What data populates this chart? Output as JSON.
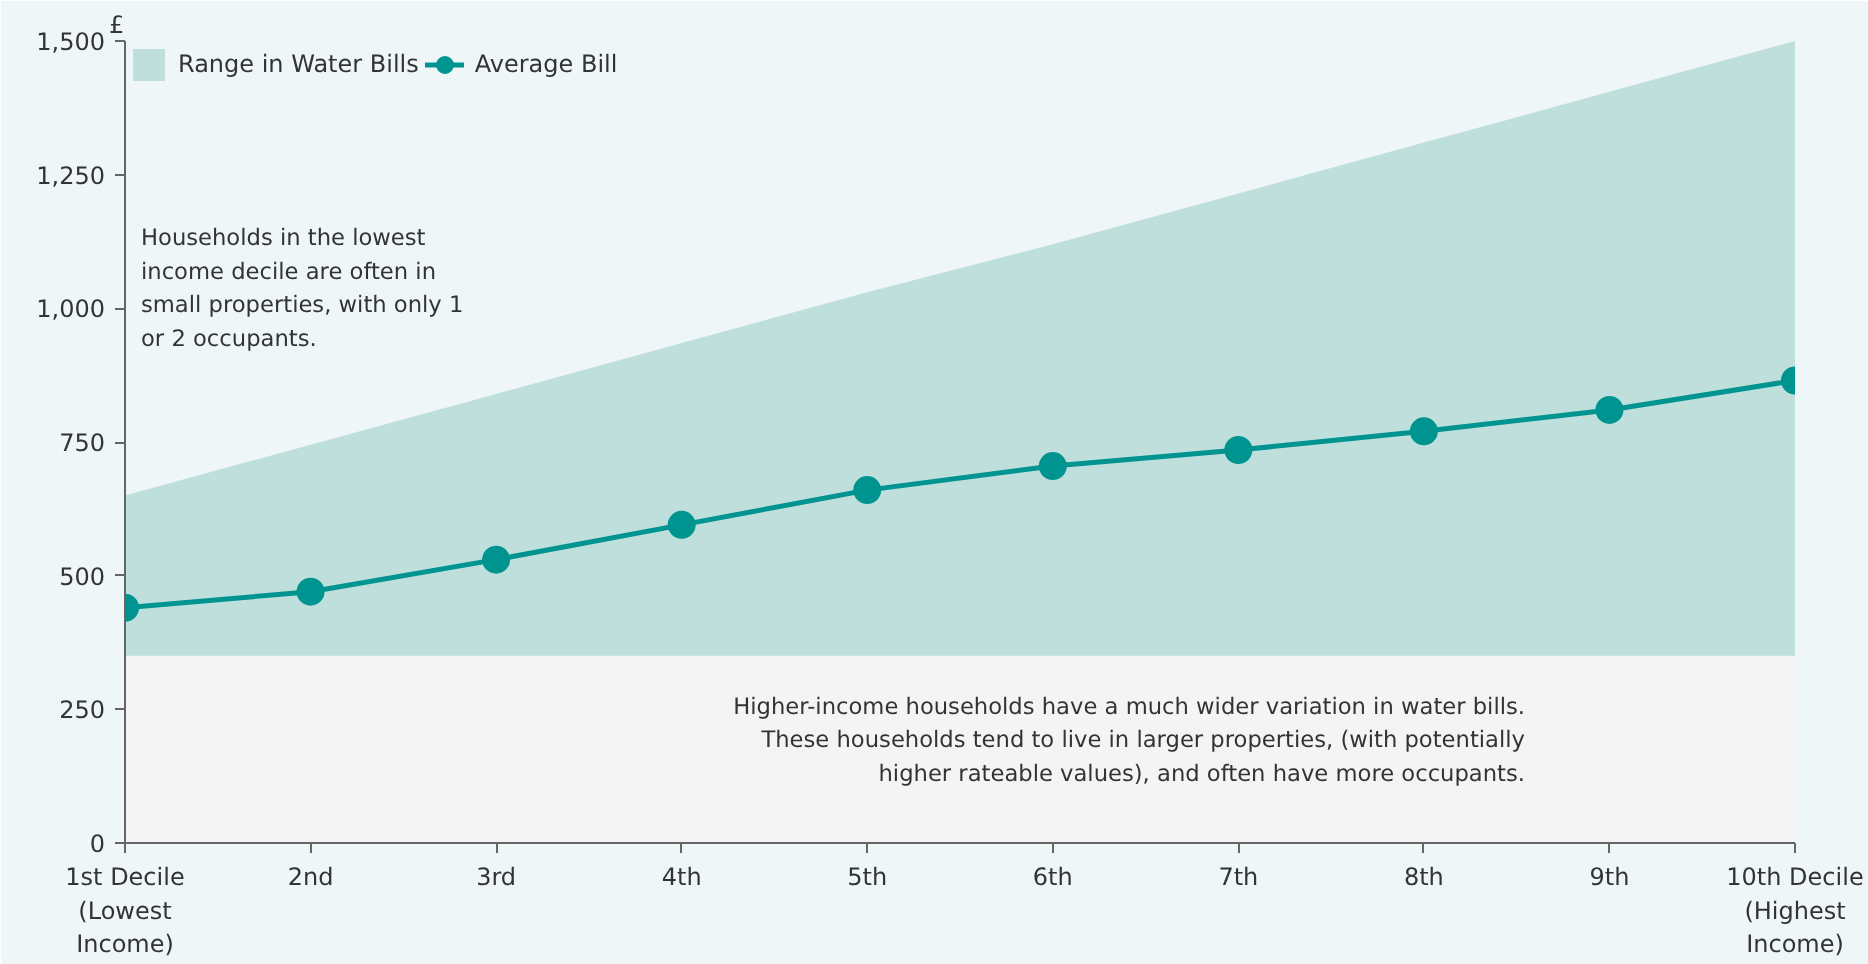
{
  "chart_data": {
    "type": "line",
    "ylabel": "£",
    "categories": [
      "1st Decile\n(Lowest\nIncome)",
      "2nd",
      "3rd",
      "4th",
      "5th",
      "6th",
      "7th",
      "8th",
      "9th",
      "10th Decile\n(Highest\nIncome)"
    ],
    "series": [
      {
        "type": "area",
        "color": "#f4f4f4",
        "values": [
          350,
          350,
          350,
          350,
          350,
          350,
          350,
          350,
          350,
          350
        ]
      },
      {
        "name": "Range in Water Bills",
        "type": "area",
        "color": "#bfdfdc",
        "values": [
          300,
          395,
          490,
          585,
          680,
          770,
          865,
          960,
          1055,
          1150
        ]
      },
      {
        "name": "Average Bill",
        "color": "#009490",
        "values": [
          440,
          470,
          530,
          595,
          660,
          705,
          735,
          770,
          810,
          865
        ],
        "marker": "circle"
      }
    ],
    "ylim": [
      0,
      1500
    ],
    "yticks": [
      0,
      250,
      500,
      750,
      {
        "value": 1000,
        "label": "1,000"
      },
      {
        "value": 1250,
        "label": "1,250"
      },
      {
        "value": 1500,
        "label": "1,500"
      }
    ],
    "stacked": true,
    "annotations": [
      "Households in the lowest\nincome decile are often in\nsmall properties, with only 1\nor 2 occupants.",
      "Higher-income households have a much wider variation in water bills.\nThese households tend to live in larger properties, (with potentially\nhigher rateable values), and often have more occupants."
    ],
    "grid": false,
    "legend": "top left"
  }
}
